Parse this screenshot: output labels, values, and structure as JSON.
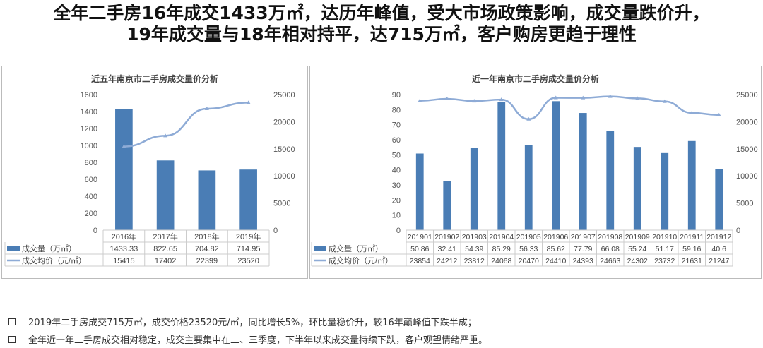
{
  "headline": {
    "line1": "全年二手房16年成交1433万㎡，达历年峰值，受大市场政策影响，成交量跌价升，",
    "line2": "19年成交量与18年相对持平，达715万㎡，客户购房更趋于理性"
  },
  "colors": {
    "bar": "#4a7db5",
    "line": "#8eabd6"
  },
  "chart_data": [
    {
      "type": "bar+line",
      "title": "近五年南京市二手房成交量价分析",
      "categories": [
        "2016年",
        "2017年",
        "2018年",
        "2019年"
      ],
      "series": [
        {
          "name": "成交量（万㎡）",
          "type": "bar",
          "axis": "left",
          "values": [
            1433.33,
            822.65,
            704.82,
            714.95
          ],
          "labels": [
            "1433.33",
            "822.65",
            "704.82",
            "714.95"
          ]
        },
        {
          "name": "成交均价（元/㎡）",
          "type": "line",
          "axis": "right",
          "values": [
            15415,
            17402,
            22399,
            23520
          ],
          "labels": [
            "15415",
            "17402",
            "22399",
            "23520"
          ]
        }
      ],
      "ylim": [
        0,
        1600
      ],
      "yticks": [
        0,
        200,
        400,
        600,
        800,
        1000,
        1200,
        1400,
        1600
      ],
      "y2lim": [
        0,
        25000
      ],
      "y2ticks": [
        0,
        5000,
        10000,
        15000,
        20000,
        25000
      ],
      "data_table": true
    },
    {
      "type": "bar+line",
      "title": "近一年南京市二手房成交量价分析",
      "categories": [
        "201901",
        "201902",
        "201903",
        "201904",
        "201905",
        "201906",
        "201907",
        "201908",
        "201909",
        "201910",
        "201911",
        "201912"
      ],
      "series": [
        {
          "name": "成交量（万㎡）",
          "type": "bar",
          "axis": "left",
          "values": [
            50.86,
            32.41,
            54.39,
            85.29,
            56.33,
            85.62,
            77.79,
            66.08,
            55.24,
            51.17,
            59.16,
            40.6
          ],
          "labels": [
            "50.86",
            "32.41",
            "54.39",
            "85.29",
            "56.33",
            "85.62",
            "77.79",
            "66.08",
            "55.24",
            "51.17",
            "59.16",
            "40.6"
          ]
        },
        {
          "name": "成交均价（元/㎡）",
          "type": "line",
          "axis": "right",
          "values": [
            23854,
            24212,
            23812,
            24068,
            20470,
            24410,
            24393,
            24663,
            24302,
            23732,
            21631,
            21247
          ],
          "labels": [
            "23854",
            "24212",
            "23812",
            "24068",
            "20470",
            "24410",
            "24393",
            "24663",
            "24302",
            "23732",
            "21631",
            "21247"
          ]
        }
      ],
      "ylim": [
        0,
        90
      ],
      "yticks": [
        0,
        10,
        20,
        30,
        40,
        50,
        60,
        70,
        80,
        90
      ],
      "y2lim": [
        0,
        25000
      ],
      "y2ticks": [
        0,
        5000,
        10000,
        15000,
        20000,
        25000
      ],
      "data_table": true
    }
  ],
  "bullets": [
    "2019年二手房成交715万㎡，成交价格23520元/㎡，同比增长5%，环比量稳价升，较16年巅峰值下跌半成；",
    "全年近一年二手房成交相对稳定，成交主要集中在二、三季度，下半年以来成交量持续下跌，客户观望情绪严重。"
  ]
}
